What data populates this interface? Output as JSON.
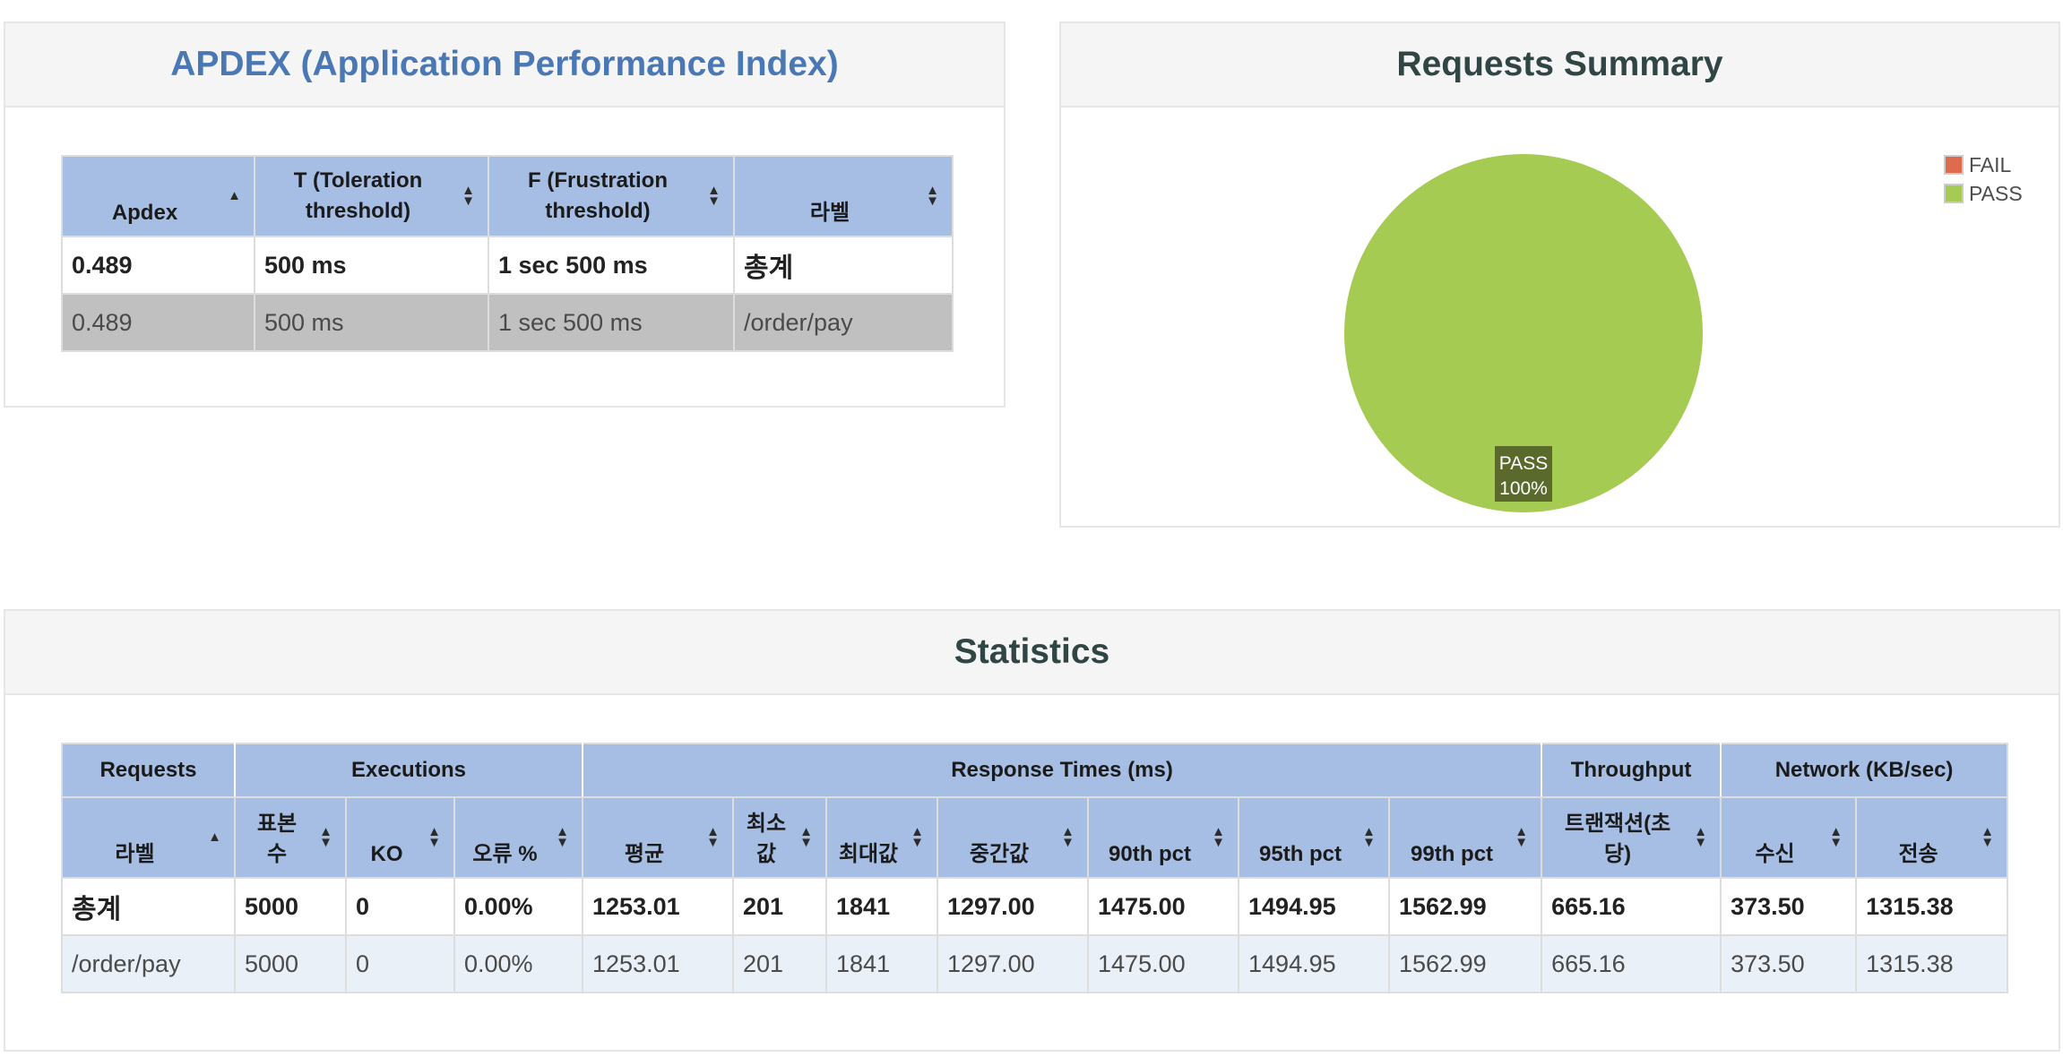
{
  "apdex": {
    "title": "APDEX (Application Performance Index)",
    "headers": [
      "Apdex",
      "T (Toleration threshold)",
      "F (Frustration threshold)",
      "라벨"
    ],
    "rows": [
      [
        "0.489",
        "500 ms",
        "1 sec 500 ms",
        "총계"
      ],
      [
        "0.489",
        "500 ms",
        "1 sec 500 ms",
        "/order/pay"
      ]
    ]
  },
  "summary": {
    "title": "Requests Summary",
    "legend": [
      {
        "label": "FAIL",
        "color": "#e06a4e"
      },
      {
        "label": "PASS",
        "color": "#a5cb52"
      }
    ],
    "slice_label": "PASS",
    "slice_percent_label": "100%"
  },
  "chart_data": {
    "type": "pie",
    "title": "Requests Summary",
    "categories": [
      "FAIL",
      "PASS"
    ],
    "values": [
      0,
      100
    ],
    "colors": [
      "#e06a4e",
      "#a5cb52"
    ],
    "legend_position": "top-right"
  },
  "statistics": {
    "title": "Statistics",
    "groups": [
      "Requests",
      "Executions",
      "Response Times (ms)",
      "Throughput",
      "Network (KB/sec)"
    ],
    "headers": [
      "라벨",
      "표본 수",
      "KO",
      "오류 %",
      "평균",
      "최소값",
      "최대값",
      "중간값",
      "90th pct",
      "95th pct",
      "99th pct",
      "트랜잭션(초당)",
      "수신",
      "전송"
    ],
    "rows": [
      [
        "총계",
        "5000",
        "0",
        "0.00%",
        "1253.01",
        "201",
        "1841",
        "1297.00",
        "1475.00",
        "1494.95",
        "1562.99",
        "665.16",
        "373.50",
        "1315.38"
      ],
      [
        "/order/pay",
        "5000",
        "0",
        "0.00%",
        "1253.01",
        "201",
        "1841",
        "1297.00",
        "1475.00",
        "1494.95",
        "1562.99",
        "665.16",
        "373.50",
        "1315.38"
      ]
    ]
  }
}
